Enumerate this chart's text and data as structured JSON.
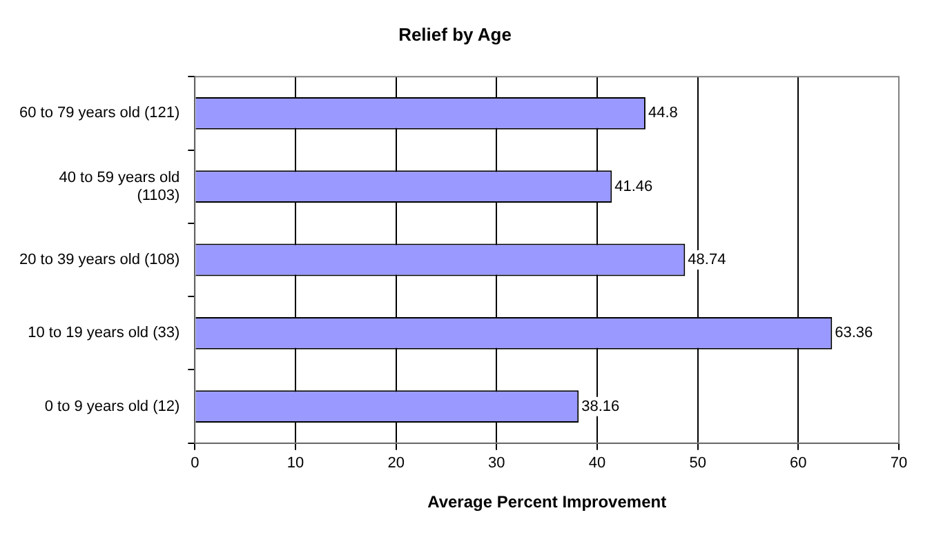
{
  "chart_data": {
    "type": "bar",
    "orientation": "horizontal",
    "title": "Relief by Age",
    "xlabel": "Average Percent Improvement",
    "categories": [
      "60 to 79 years old (121)",
      "40 to 59 years old (1103)",
      "20 to 39 years old (108)",
      "10 to 19 years old (33)",
      "0 to 9 years old (12)"
    ],
    "values": [
      44.8,
      41.46,
      48.74,
      63.36,
      38.16
    ],
    "color": "#9999ff",
    "xlim": [
      0,
      70
    ],
    "xticks": [
      0,
      10,
      20,
      30,
      40,
      50,
      60,
      70
    ],
    "grid": "x",
    "data_labels": true,
    "legend": false
  }
}
